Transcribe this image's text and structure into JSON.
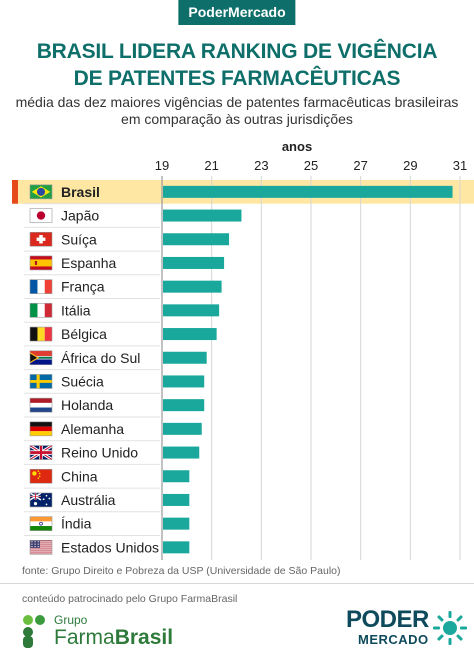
{
  "header": {
    "brand": "PoderMercado"
  },
  "title_lines": [
    "BRASIL LIDERA RANKING DE VIGÊNCIA",
    "DE PATENTES FARMACÊUTICAS"
  ],
  "subtitle_lines": [
    "média das dez maiores vigências de patentes farmacêuticas brasileiras",
    "em comparação às outras jurisdições"
  ],
  "chart_data": {
    "type": "bar",
    "orientation": "horizontal",
    "axis_title": "anos",
    "xlim": [
      19,
      31
    ],
    "ticks": [
      19,
      21,
      23,
      25,
      27,
      29,
      31
    ],
    "grid": true,
    "highlight": "Brasil",
    "categories": [
      "Brasil",
      "Japão",
      "Suíça",
      "Espanha",
      "França",
      "Itália",
      "Bélgica",
      "África do Sul",
      "Suécia",
      "Holanda",
      "Alemanha",
      "Reino Unido",
      "China",
      "Austrália",
      "Índia",
      "Estados Unidos"
    ],
    "values": [
      30.7,
      22.2,
      21.7,
      21.5,
      21.4,
      21.3,
      21.2,
      20.8,
      20.7,
      20.7,
      20.6,
      20.5,
      20.1,
      20.1,
      20.1,
      20.1
    ]
  },
  "colors": {
    "bar": "#1aa89c",
    "highlight_row": "#fde7a3",
    "highlight_mark": "#e64a19",
    "brand": "#0e6f6a"
  },
  "footer": {
    "source": "fonte: Grupo Direito e Pobreza da USP (Universidade de São Paulo)",
    "sponsor": "conteúdo patrocinado pelo Grupo FarmaBrasil",
    "farmabrasil_grupo": "Grupo",
    "farmabrasil_farma": "Farma",
    "farmabrasil_brasil": "Brasil",
    "poder_logo_top": "PODER",
    "poder_logo_bottom": "MERCADO"
  }
}
